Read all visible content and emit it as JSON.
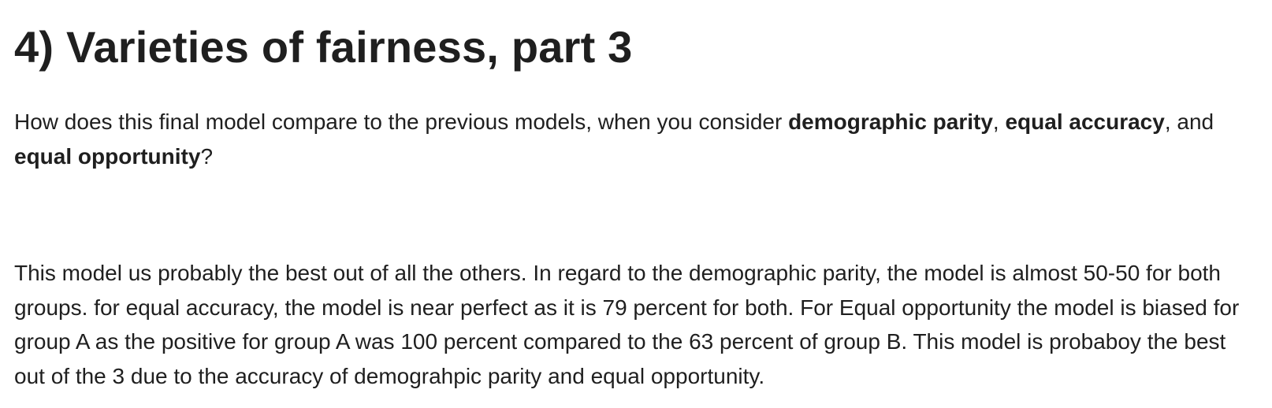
{
  "heading": "4) Varieties of fairness, part 3",
  "question": {
    "intro": "How does this final model compare to the previous models, when you consider ",
    "term1": "demographic parity",
    "sep1": ", ",
    "term2": "equal accuracy",
    "sep2": ", and ",
    "term3": "equal opportunity",
    "end": "?"
  },
  "answer": "This model us probably the best out of all the others. In regard to the demographic parity, the model is almost 50-50 for both groups. for equal accuracy, the model is near perfect as it is 79 percent for both. For Equal opportunity the model is biased for group A as the positive for group A was 100 percent compared to the 63 percent of group B. This model is probaboy the best out of the 3 due to the accuracy of demograhpic parity and equal opportunity."
}
